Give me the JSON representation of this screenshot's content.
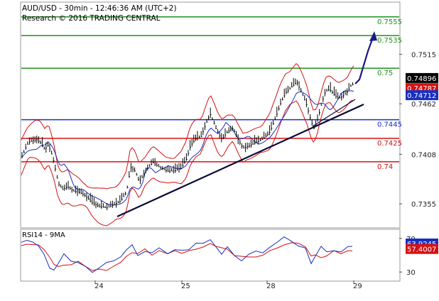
{
  "header": {
    "line1": "AUD/USD - 30min - 12:46:36 AM (UTC+2)",
    "line2": "Research © 2016 TRADING CENTRAL"
  },
  "chart_data": [
    {
      "type": "line",
      "ylim": [
        0.733,
        0.757
      ],
      "y_ticks": [
        0.7515,
        0.7462,
        0.7408,
        0.7355
      ],
      "x_ticks": [
        "24",
        "25",
        "28",
        "29"
      ],
      "grid": false,
      "levels": [
        {
          "label": "0.7555",
          "value": 0.7555,
          "color": "#1f8f1f"
        },
        {
          "label": "0.7535",
          "value": 0.7535,
          "color": "#1f8f1f"
        },
        {
          "label": "0.75",
          "value": 0.75,
          "color": "#1f8f1f"
        },
        {
          "label": "0.7445",
          "value": 0.7445,
          "color": "#1a2fbf"
        },
        {
          "label": "0.7425",
          "value": 0.7425,
          "color": "#d41111"
        },
        {
          "label": "0.74",
          "value": 0.74,
          "color": "#d41111"
        }
      ],
      "price_badges": [
        {
          "label": "0.74896",
          "value": 0.74896,
          "bg": "#000000",
          "fg": "#ffffff"
        },
        {
          "label": "0.74787",
          "value": 0.74787,
          "bg": "#d41111",
          "fg": "#ffffff"
        },
        {
          "label": "0.74712",
          "value": 0.74712,
          "bg": "#1a2fbf",
          "fg": "#ffffff"
        }
      ],
      "colors": {
        "price": "#000000",
        "bollinger": "#d41111",
        "ma": "#1a2fbf",
        "trend": "#0a0a3a",
        "arrow": "#1a1a8c"
      }
    },
    {
      "type": "line",
      "title": "RSI14 - 9MA",
      "ylim": [
        20,
        80
      ],
      "y_ticks": [
        70,
        30
      ],
      "series": [
        {
          "name": "RSI14",
          "color": "#1a2fbf"
        },
        {
          "name": "9MA",
          "color": "#d41111"
        }
      ],
      "badges": [
        {
          "label": "63.9245",
          "value": 63.9245,
          "bg": "#1a2fbf",
          "fg": "#ffffff"
        },
        {
          "label": "57.4007",
          "value": 57.4007,
          "bg": "#d41111",
          "fg": "#ffffff"
        }
      ]
    }
  ]
}
